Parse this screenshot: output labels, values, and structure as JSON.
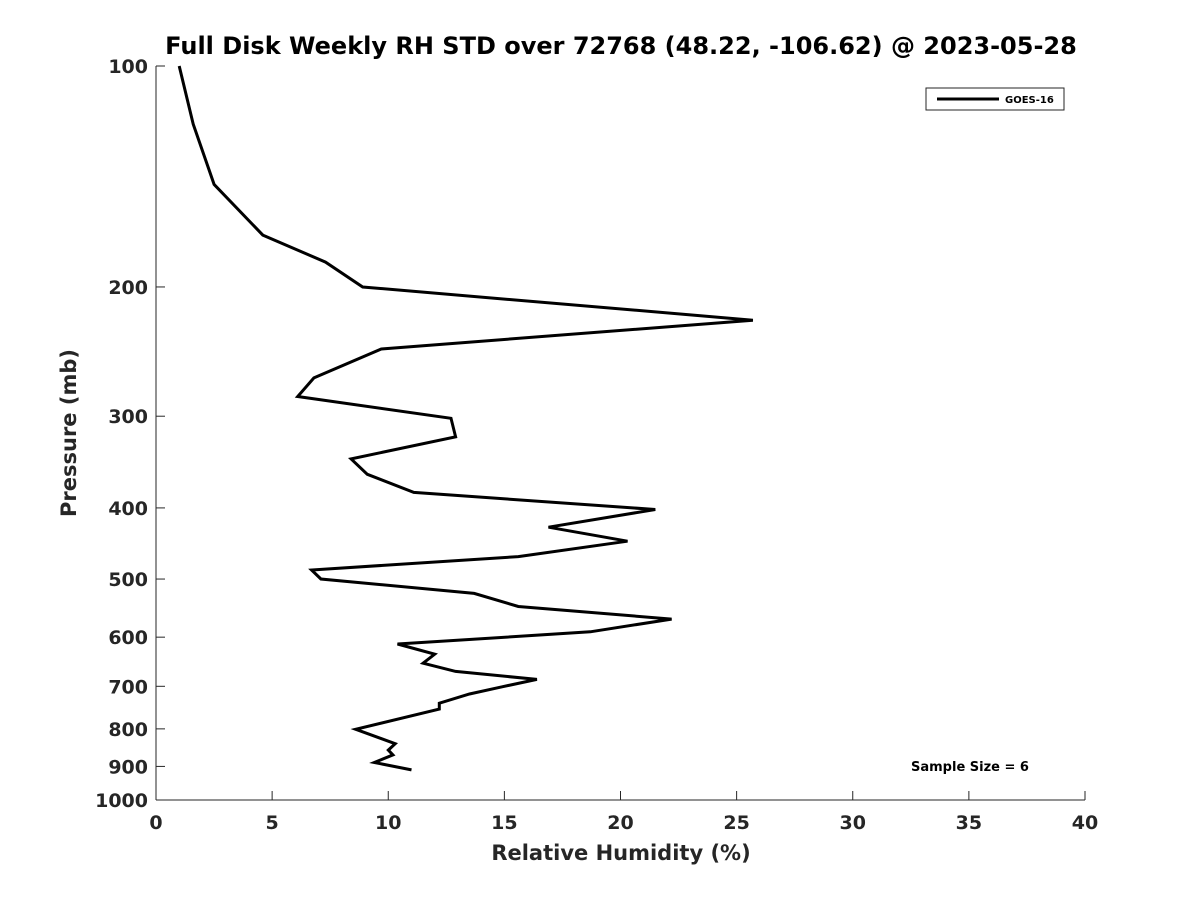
{
  "chart_data": {
    "type": "line",
    "title": "Full Disk Weekly RH STD over 72768 (48.22, -106.62) @ 2023-05-28",
    "xlabel": "Relative Humidity (%)",
    "ylabel": "Pressure (mb)",
    "xlim": [
      0,
      40
    ],
    "ylim": [
      100,
      1000
    ],
    "y_scale": "log",
    "y_reversed": true,
    "x_ticks": [
      0,
      5,
      10,
      15,
      20,
      25,
      30,
      35,
      40
    ],
    "y_ticks": [
      100,
      200,
      300,
      400,
      500,
      600,
      700,
      800,
      900,
      1000
    ],
    "grid": false,
    "legend_position": "top-right",
    "series": [
      {
        "name": "GOES-16",
        "color": "#000000",
        "points": [
          [
            1.0,
            100
          ],
          [
            1.6,
            120
          ],
          [
            2.5,
            145
          ],
          [
            4.6,
            170
          ],
          [
            7.3,
            185
          ],
          [
            8.9,
            200
          ],
          [
            25.7,
            222
          ],
          [
            9.7,
            243
          ],
          [
            6.8,
            266
          ],
          [
            6.1,
            282
          ],
          [
            12.7,
            302
          ],
          [
            12.9,
            320
          ],
          [
            8.4,
            343
          ],
          [
            9.1,
            360
          ],
          [
            11.1,
            381
          ],
          [
            21.5,
            402
          ],
          [
            16.9,
            425
          ],
          [
            20.3,
            444
          ],
          [
            15.6,
            466
          ],
          [
            6.7,
            486
          ],
          [
            7.1,
            500
          ],
          [
            13.7,
            523
          ],
          [
            15.6,
            545
          ],
          [
            22.2,
            567
          ],
          [
            18.7,
            590
          ],
          [
            10.4,
            613
          ],
          [
            12.0,
            633
          ],
          [
            11.5,
            651
          ],
          [
            12.9,
            668
          ],
          [
            16.4,
            685
          ],
          [
            14.9,
            701
          ],
          [
            13.5,
            717
          ],
          [
            12.2,
            738
          ],
          [
            12.2,
            752
          ],
          [
            8.6,
            801
          ],
          [
            10.3,
            838
          ],
          [
            10.0,
            855
          ],
          [
            10.2,
            868
          ],
          [
            9.4,
            889
          ],
          [
            11.0,
            910
          ]
        ]
      }
    ],
    "annotation": "Sample Size = 6"
  }
}
